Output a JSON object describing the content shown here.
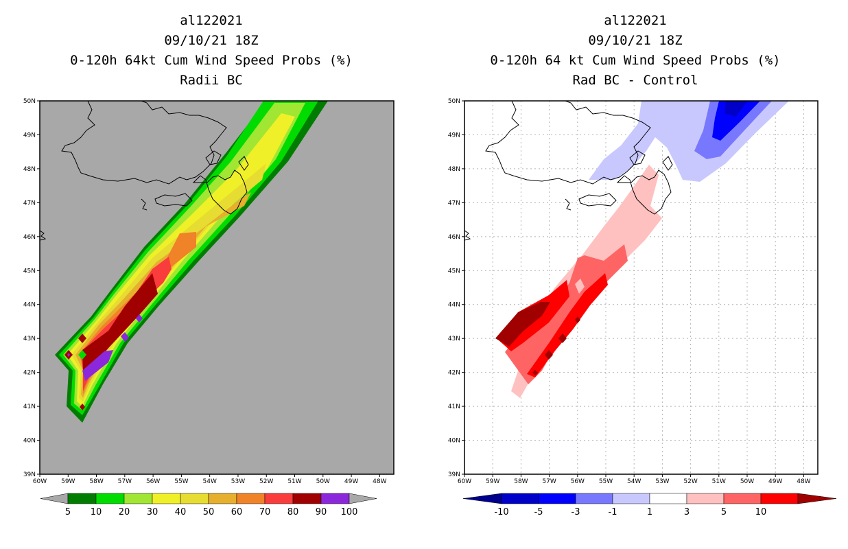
{
  "left_panel": {
    "title_lines": [
      "al122021",
      "09/10/21 18Z",
      "0-120h 64kt Cum Wind Speed Probs (%)",
      "Radii BC"
    ],
    "colorbar_labels": [
      "5",
      "10",
      "20",
      "30",
      "40",
      "50",
      "60",
      "70",
      "80",
      "90",
      "100"
    ],
    "colorbar_colors": [
      "#007d00",
      "#00dc00",
      "#a0e632",
      "#f0f028",
      "#e6dc32",
      "#e6af2d",
      "#f08228",
      "#fa3c3c",
      "#a00000",
      "#8c28dc"
    ]
  },
  "right_panel": {
    "title_lines": [
      "al122021",
      "09/10/21 18Z",
      "0-120h 64 kt Cum Wind Speed Probs (%)",
      "Rad BC - Control"
    ],
    "colorbar_labels": [
      "-10",
      "-5",
      "-3",
      "-1",
      "1",
      "3",
      "5",
      "10"
    ],
    "colorbar_colors": [
      "#0000c8",
      "#0000ff",
      "#7878ff",
      "#c8c8ff",
      "#ffffff",
      "#ffc0c0",
      "#ff6464",
      "#ff0000"
    ]
  },
  "axes": {
    "lat_labels": [
      "50N",
      "49N",
      "48N",
      "47N",
      "46N",
      "45N",
      "44N",
      "43N",
      "42N",
      "41N",
      "40N",
      "39N"
    ],
    "lon_labels": [
      "60W",
      "59W",
      "58W",
      "57W",
      "56W",
      "55W",
      "54W",
      "53W",
      "52W",
      "51W",
      "50W",
      "49W",
      "48W"
    ],
    "lat_range": [
      39,
      50
    ],
    "lon_range": [
      -60,
      -47.5
    ]
  }
}
